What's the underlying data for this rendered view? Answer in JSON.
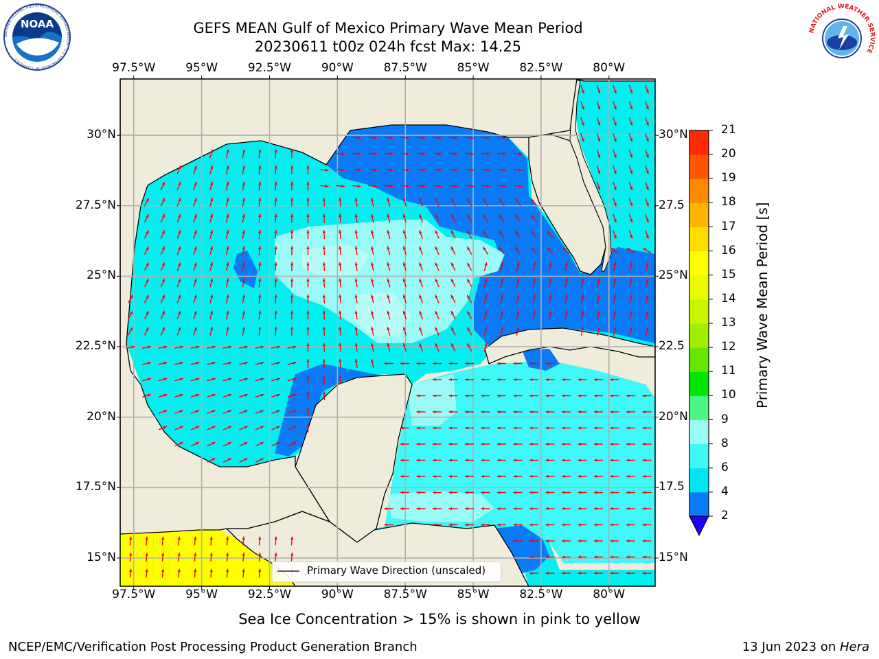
{
  "title": {
    "line1": "GEFS MEAN Gulf of Mexico Primary Wave Mean Period",
    "line2": "20230611 t00z 024h fcst   Max: 14.25"
  },
  "map": {
    "lon_range": [
      -98,
      -78.3
    ],
    "lat_range": [
      14,
      32
    ],
    "lon_ticks": [
      "97.5°W",
      "95°W",
      "92.5°W",
      "90°W",
      "87.5°W",
      "85°W",
      "82.5°W",
      "80°W"
    ],
    "lon_tick_values": [
      -97.5,
      -95,
      -92.5,
      -90,
      -87.5,
      -85,
      -82.5,
      -80
    ],
    "lat_ticks": [
      "15°N",
      "17.5°N",
      "20°N",
      "22.5°N",
      "25°N",
      "27.5°N",
      "30°N"
    ],
    "lat_tick_values": [
      15,
      17.5,
      20,
      22.5,
      25,
      27.5,
      30
    ],
    "right_lat_ticks": [
      "15°N",
      "17.5",
      "20°N",
      "22.5",
      "25°N",
      "27.5",
      "30°N"
    ],
    "land_color": "#efecdc",
    "grid": true
  },
  "legend": {
    "label": "Primary Wave Direction (unscaled)"
  },
  "colorbar": {
    "title": "Primary Wave Mean Period [s]",
    "ticks": [
      "2",
      "4",
      "6",
      "8",
      "9",
      "10",
      "11",
      "12",
      "13",
      "14",
      "15",
      "16",
      "17",
      "18",
      "19",
      "20",
      "21"
    ],
    "colors": [
      "#0a7af5",
      "#00e6f0",
      "#3ff5f5",
      "#9afaf5",
      "#4df583",
      "#00e600",
      "#66e600",
      "#a0ee00",
      "#c8f500",
      "#eafa00",
      "#ffff00",
      "#ffdd00",
      "#ffb400",
      "#ff8a00",
      "#ff5500",
      "#ff2a00"
    ],
    "under_color": "#1e00ff"
  },
  "bottom_note": "Sea Ice Concentration > 15% is shown in pink to yellow",
  "footer": {
    "left": "NCEP/EMC/Verification Post Processing Product Generation Branch",
    "right_date": "13 Jun 2023 on ",
    "right_host": "Hera"
  },
  "logos": {
    "left": "noaa-logo-icon",
    "right": "nws-logo-icon",
    "left_text": "NOAA",
    "left_ring_text": "NATIONAL OCEANIC AND ATMOSPHERIC ADMINISTRATION · U.S. DEPARTMENT OF COMMERCE",
    "right_ring_text": "NATIONAL WEATHER SERVICE"
  }
}
